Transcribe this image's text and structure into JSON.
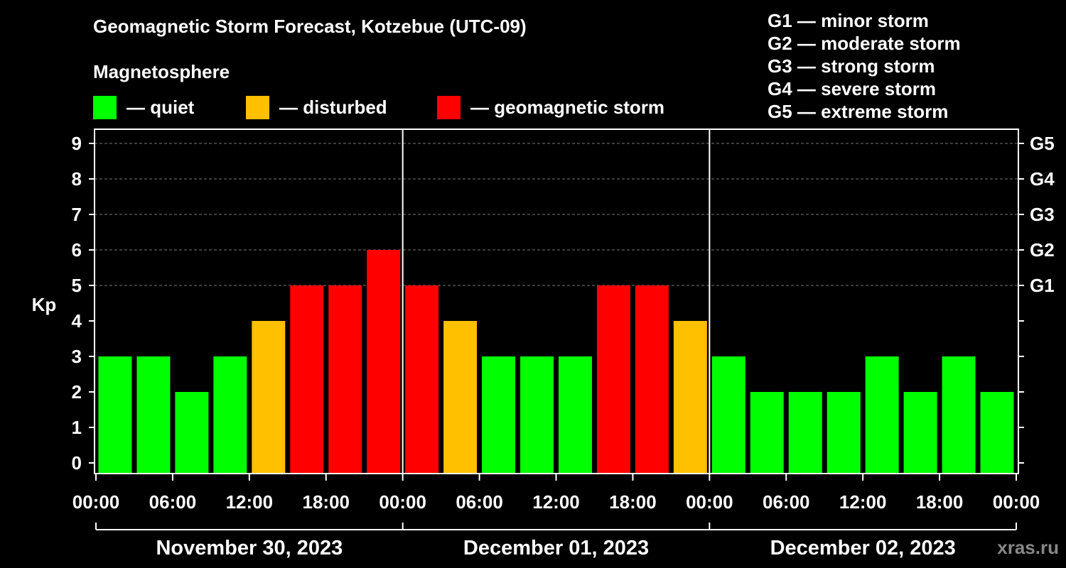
{
  "title": "Geomagnetic Storm Forecast, Kotzebue (UTC-09)",
  "subtitle": "Magnetosphere",
  "legend": [
    {
      "label": "— quiet",
      "color": "#00ff00"
    },
    {
      "label": "— disturbed",
      "color": "#ffc000"
    },
    {
      "label": "— geomagnetic storm",
      "color": "#ff0000"
    }
  ],
  "g_levels": [
    "G1 — minor storm",
    "G2 — moderate storm",
    "G3 — strong storm",
    "G4 — severe storm",
    "G5 — extreme storm"
  ],
  "watermark": "xras.ru",
  "chart_data": {
    "type": "bar",
    "ylabel": "Kp",
    "ylim": [
      0,
      9
    ],
    "yticks": [
      "0",
      "1",
      "2",
      "3",
      "4",
      "5",
      "6",
      "7",
      "8",
      "9"
    ],
    "right_ticks": [
      {
        "value": 5,
        "label": "G1"
      },
      {
        "value": 6,
        "label": "G2"
      },
      {
        "value": 7,
        "label": "G3"
      },
      {
        "value": 8,
        "label": "G4"
      },
      {
        "value": 9,
        "label": "G5"
      }
    ],
    "xticks": [
      "00:00",
      "06:00",
      "12:00",
      "18:00",
      "00:00",
      "06:00",
      "12:00",
      "18:00",
      "00:00",
      "06:00",
      "12:00",
      "18:00",
      "00:00"
    ],
    "days": [
      "November 30, 2023",
      "December 01, 2023",
      "December 02, 2023"
    ],
    "bar_interval_hours": 3,
    "values": [
      3,
      3,
      2,
      3,
      4,
      5,
      5,
      6,
      5,
      4,
      3,
      3,
      3,
      5,
      5,
      4,
      3,
      2,
      2,
      2,
      3,
      2,
      3,
      2
    ],
    "colors": {
      "quiet": "#00ff00",
      "disturbed": "#ffc000",
      "storm": "#ff0000"
    },
    "grid": true
  }
}
